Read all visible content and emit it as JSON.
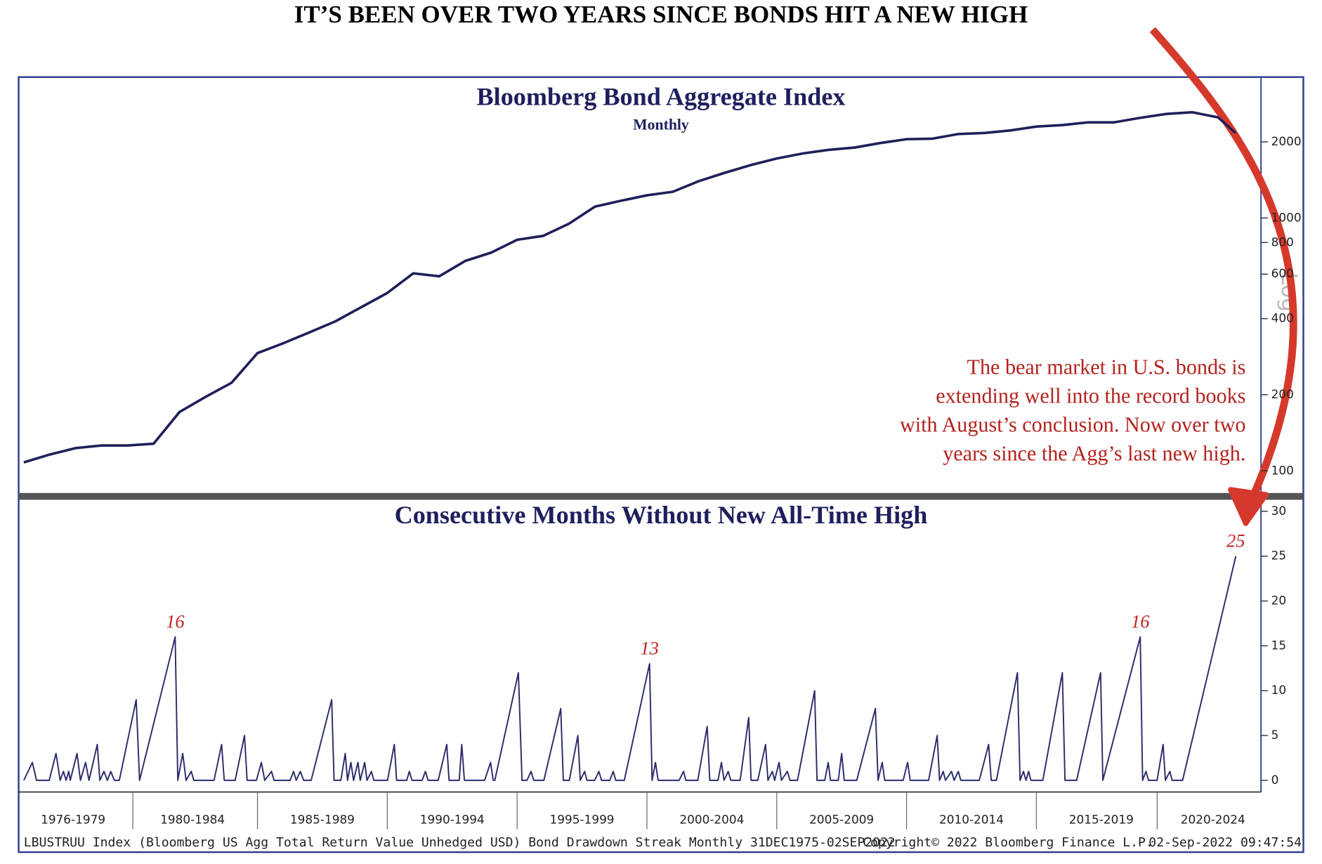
{
  "title": "IT’S BEEN OVER TWO YEARS SINCE BONDS HIT A NEW HIGH",
  "footer": {
    "left": "LBUSTRUU Index (Bloomberg US Agg Total Return Value Unhedged USD) Bond Drawdown Streak  Monthly 31DEC1975-02SEP2022",
    "center": "Copyright© 2022 Bloomberg Finance L.P.",
    "right": "02-Sep-2022 09:47:54"
  },
  "chart_data": [
    {
      "type": "line",
      "title": "Bloomberg Bond Aggregate Index",
      "subtitle": "Monthly",
      "y_axis_label": "Log",
      "log_scale": true,
      "color": "#1f1f5a",
      "annotation": [
        "The bear market in U.S. bonds is",
        "extending well into the record books",
        "with August’s conclusion. Now over two",
        "years since the Agg’s last new high."
      ],
      "annotation_color": "#b3221d",
      "x": [
        1976,
        1977,
        1978,
        1979,
        1980,
        1981,
        1982,
        1983,
        1984,
        1985,
        1986,
        1987,
        1988,
        1989,
        1990,
        1991,
        1992,
        1993,
        1994,
        1995,
        1996,
        1997,
        1998,
        1999,
        2000,
        2001,
        2002,
        2003,
        2004,
        2005,
        2006,
        2007,
        2008,
        2009,
        2010,
        2011,
        2012,
        2013,
        2014,
        2015,
        2016,
        2017,
        2018,
        2019,
        2020,
        2021,
        2022,
        2022.67
      ],
      "values": [
        108,
        116,
        123,
        126,
        126,
        128,
        171,
        196,
        223,
        292,
        320,
        353,
        390,
        444,
        505,
        604,
        588,
        676,
        730,
        820,
        850,
        950,
        1110,
        1170,
        1230,
        1270,
        1400,
        1510,
        1620,
        1720,
        1800,
        1860,
        1900,
        1980,
        2050,
        2060,
        2150,
        2170,
        2220,
        2300,
        2330,
        2390,
        2390,
        2490,
        2580,
        2620,
        2500,
        2170
      ],
      "xlim": [
        1975.9,
        2023.65
      ],
      "ylim": [
        83,
        3500
      ],
      "yticks": [
        100,
        200,
        400,
        600,
        800,
        1000,
        2000
      ]
    },
    {
      "type": "line",
      "title": "Consecutive Months Without New All-Time High",
      "color": "#2b2b6b",
      "label_color": "#c0241f",
      "x": [
        1976.0,
        1976.33,
        1976.49,
        1976.98,
        1977.24,
        1977.4,
        1977.53,
        1977.63,
        1977.73,
        1977.79,
        1978.05,
        1978.18,
        1978.38,
        1978.51,
        1978.83,
        1978.93,
        1979.09,
        1979.22,
        1979.35,
        1979.49,
        1979.68,
        1980.33,
        1980.46,
        1981.83,
        1981.93,
        1982.12,
        1982.25,
        1982.45,
        1982.55,
        1983.33,
        1983.62,
        1983.72,
        1984.14,
        1984.5,
        1984.6,
        1984.96,
        1985.15,
        1985.28,
        1985.54,
        1985.64,
        1986.26,
        1986.39,
        1986.49,
        1986.65,
        1986.78,
        1987.07,
        1987.86,
        1987.95,
        1988.21,
        1988.38,
        1988.47,
        1988.6,
        1988.7,
        1988.87,
        1988.96,
        1989.13,
        1989.22,
        1989.39,
        1989.48,
        1990.01,
        1990.27,
        1990.36,
        1990.75,
        1990.85,
        1990.95,
        1991.34,
        1991.47,
        1991.57,
        1991.96,
        1992.29,
        1992.38,
        1992.77,
        1992.87,
        1992.97,
        1993.75,
        1993.98,
        1994.08,
        1994.14,
        1995.05,
        1995.19,
        1995.38,
        1995.54,
        1995.64,
        1996.03,
        1996.68,
        1996.78,
        1997.01,
        1997.34,
        1997.43,
        1997.6,
        1997.69,
        1997.99,
        1998.15,
        1998.25,
        1998.57,
        1998.7,
        1998.8,
        1999.13,
        2000.1,
        2000.2,
        2000.33,
        2000.43,
        2001.24,
        2001.41,
        2001.5,
        2001.96,
        2002.32,
        2002.42,
        2002.74,
        2002.87,
        2002.97,
        2003.13,
        2003.23,
        2003.59,
        2003.92,
        2004.01,
        2004.27,
        2004.57,
        2004.66,
        2004.83,
        2004.92,
        2005.09,
        2005.18,
        2005.41,
        2005.51,
        2005.8,
        2006.46,
        2006.55,
        2006.85,
        2006.98,
        2007.07,
        2007.37,
        2007.5,
        2007.6,
        2008.08,
        2008.8,
        2008.9,
        2009.06,
        2009.16,
        2009.87,
        2010.04,
        2010.14,
        2010.85,
        2011.18,
        2011.27,
        2011.41,
        2011.5,
        2011.73,
        2011.83,
        2011.99,
        2012.09,
        2012.32,
        2012.8,
        2013.16,
        2013.26,
        2013.46,
        2014.27,
        2014.37,
        2014.5,
        2014.6,
        2014.7,
        2014.79,
        2015.25,
        2016.0,
        2016.1,
        2016.55,
        2017.47,
        2017.56,
        2019.0,
        2019.09,
        2019.22,
        2019.32,
        2019.65,
        2019.88,
        2019.97,
        2020.14,
        2020.23,
        2020.63,
        2022.68
      ],
      "values": [
        0,
        2,
        0,
        0,
        3,
        0,
        1,
        0,
        1,
        0,
        3,
        0,
        2,
        0,
        4,
        0,
        1,
        0,
        1,
        0,
        0,
        9,
        0,
        16,
        0,
        3,
        0,
        1,
        0,
        0,
        4,
        0,
        0,
        5,
        0,
        0,
        2,
        0,
        1,
        0,
        0,
        1,
        0,
        1,
        0,
        0,
        9,
        0,
        0,
        3,
        0,
        2,
        0,
        2,
        0,
        2,
        0,
        1,
        0,
        0,
        4,
        0,
        0,
        1,
        0,
        0,
        1,
        0,
        0,
        4,
        0,
        0,
        4,
        0,
        0,
        2,
        0,
        0,
        12,
        0,
        0,
        1,
        0,
        0,
        8,
        0,
        0,
        5,
        0,
        1,
        0,
        0,
        1,
        0,
        0,
        1,
        0,
        0,
        13,
        0,
        2,
        0,
        0,
        1,
        0,
        0,
        6,
        0,
        0,
        2,
        0,
        1,
        0,
        0,
        7,
        0,
        0,
        4,
        0,
        1,
        0,
        2,
        0,
        1,
        0,
        0,
        10,
        0,
        0,
        2,
        0,
        0,
        3,
        0,
        0,
        8,
        0,
        2,
        0,
        0,
        2,
        0,
        0,
        5,
        0,
        1,
        0,
        1,
        0,
        1,
        0,
        0,
        0,
        4,
        0,
        0,
        12,
        0,
        1,
        0,
        1,
        0,
        0,
        12,
        0,
        0,
        12,
        0,
        16,
        0,
        1,
        0,
        0,
        4,
        0,
        1,
        0,
        0,
        25
      ],
      "value_labels": [
        null,
        null,
        null,
        null,
        null,
        null,
        null,
        null,
        null,
        null,
        null,
        null,
        null,
        null,
        null,
        null,
        null,
        null,
        null,
        null,
        null,
        null,
        null,
        "16",
        null,
        null,
        null,
        null,
        null,
        null,
        null,
        null,
        null,
        null,
        null,
        null,
        null,
        null,
        null,
        null,
        null,
        null,
        null,
        null,
        null,
        null,
        null,
        null,
        null,
        null,
        null,
        null,
        null,
        null,
        null,
        null,
        null,
        null,
        null,
        null,
        null,
        null,
        null,
        null,
        null,
        null,
        null,
        null,
        null,
        null,
        null,
        null,
        null,
        null,
        null,
        null,
        null,
        null,
        null,
        null,
        null,
        null,
        null,
        null,
        null,
        null,
        null,
        null,
        null,
        null,
        null,
        null,
        null,
        null,
        null,
        null,
        null,
        null,
        "13",
        null,
        null,
        null,
        null,
        null,
        null,
        null,
        null,
        null,
        null,
        null,
        null,
        null,
        null,
        null,
        null,
        null,
        null,
        null,
        null,
        null,
        null,
        null,
        null,
        null,
        null,
        null,
        null,
        null,
        null,
        null,
        null,
        null,
        null,
        null,
        null,
        null,
        null,
        null,
        null,
        null,
        null,
        null,
        null,
        null,
        null,
        null,
        null,
        null,
        null,
        null,
        null,
        null,
        null,
        null,
        null,
        null,
        null,
        null,
        null,
        null,
        null,
        null,
        null,
        null,
        null,
        null,
        null,
        null,
        "16",
        null,
        null,
        null,
        null,
        null,
        null,
        null,
        null,
        null,
        "25"
      ],
      "xlim": [
        1975.9,
        2023.65
      ],
      "ylim": [
        -1.3,
        31.1
      ],
      "yticks": [
        0,
        5,
        10,
        15,
        20,
        25,
        30
      ],
      "xticks": [
        {
          "value": 1977.9,
          "label": "1976-1979"
        },
        {
          "value": 1982.5,
          "label": "1980-1984"
        },
        {
          "value": 1987.5,
          "label": "1985-1989"
        },
        {
          "value": 1992.5,
          "label": "1990-1994"
        },
        {
          "value": 1997.5,
          "label": "1995-1999"
        },
        {
          "value": 2002.5,
          "label": "2000-2004"
        },
        {
          "value": 2007.5,
          "label": "2005-2009"
        },
        {
          "value": 2012.5,
          "label": "2010-2014"
        },
        {
          "value": 2017.5,
          "label": "2015-2019"
        },
        {
          "value": 2021.8,
          "label": "2020-2024"
        }
      ]
    }
  ]
}
